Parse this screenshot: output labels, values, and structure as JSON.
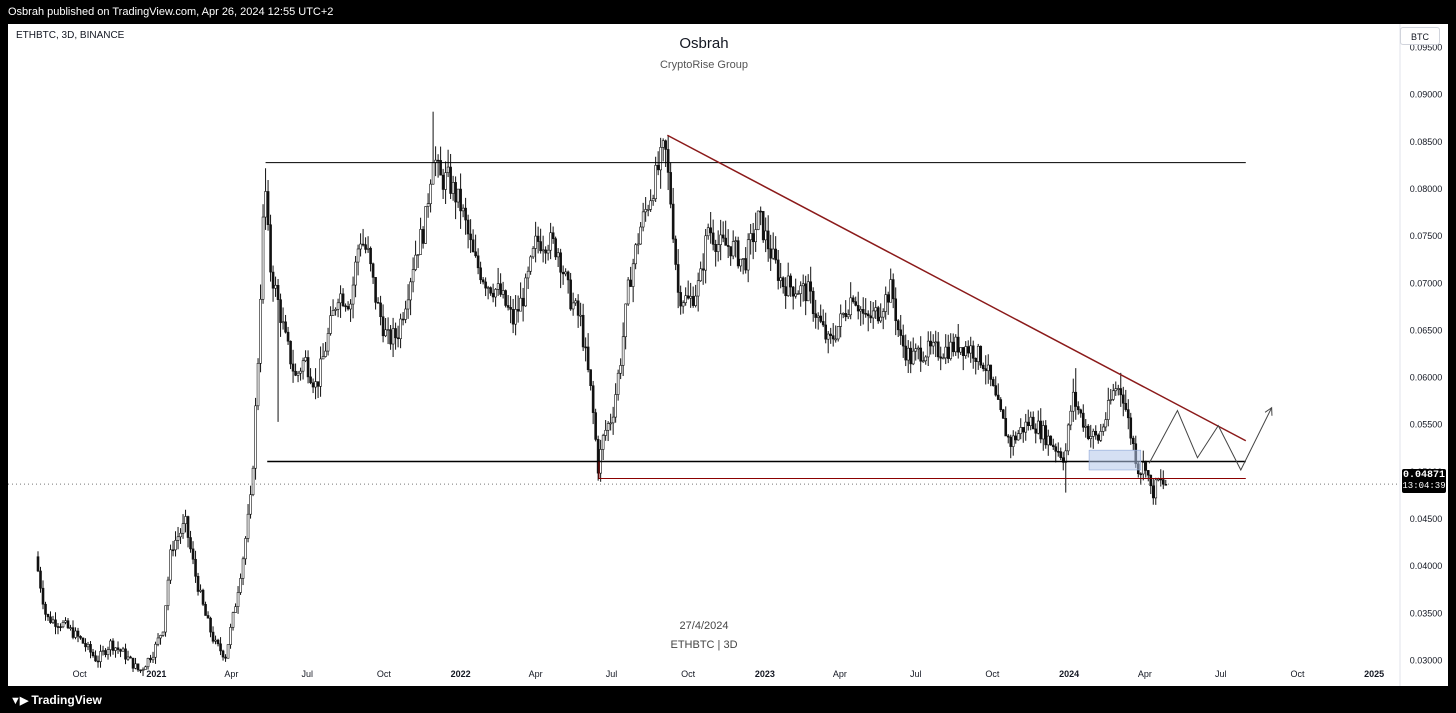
{
  "header": {
    "published": "Osbrah published on TradingView.com, Apr 26, 2024 12:55 UTC+2"
  },
  "footer": {
    "brand": "TradingView",
    "logo_icon": "tradingview-logo-icon"
  },
  "chart_data": {
    "type": "candlestick",
    "symbol_line": "ETHBTC, 3D, BINANCE",
    "title": "Osbrah",
    "subtitle": "CryptoRise Group",
    "watermark_date": "27/4/2024",
    "watermark_symbol": "ETHBTC | 3D",
    "currency": "BTC",
    "last_price": "0.04871",
    "countdown": "13:04:39",
    "ylim": [
      0.0275,
      0.0975
    ],
    "y_ticks": [
      "0.03000",
      "0.03500",
      "0.04000",
      "0.04500",
      "0.05000",
      "0.05500",
      "0.06000",
      "0.06500",
      "0.07000",
      "0.07500",
      "0.08000",
      "0.08500",
      "0.09000",
      "0.09500"
    ],
    "x_ticks": [
      {
        "label": "Oct",
        "date": "2020-10-01",
        "bold": false
      },
      {
        "label": "2021",
        "date": "2021-01-01",
        "bold": true
      },
      {
        "label": "Apr",
        "date": "2021-04-01",
        "bold": false
      },
      {
        "label": "Jul",
        "date": "2021-07-01",
        "bold": false
      },
      {
        "label": "Oct",
        "date": "2021-10-01",
        "bold": false
      },
      {
        "label": "2022",
        "date": "2022-01-01",
        "bold": true
      },
      {
        "label": "Apr",
        "date": "2022-04-01",
        "bold": false
      },
      {
        "label": "Jul",
        "date": "2022-07-01",
        "bold": false
      },
      {
        "label": "Oct",
        "date": "2022-10-01",
        "bold": false
      },
      {
        "label": "2023",
        "date": "2023-01-01",
        "bold": true
      },
      {
        "label": "Apr",
        "date": "2023-04-01",
        "bold": false
      },
      {
        "label": "Jul",
        "date": "2023-07-01",
        "bold": false
      },
      {
        "label": "Oct",
        "date": "2023-10-01",
        "bold": false
      },
      {
        "label": "2024",
        "date": "2024-01-01",
        "bold": true
      },
      {
        "label": "Apr",
        "date": "2024-04-01",
        "bold": false
      },
      {
        "label": "Jul",
        "date": "2024-07-01",
        "bold": false
      },
      {
        "label": "Oct",
        "date": "2024-10-01",
        "bold": false
      },
      {
        "label": "2025",
        "date": "2025-01-01",
        "bold": true
      }
    ],
    "price_path": [
      [
        "2020-08-12",
        0.041
      ],
      [
        "2020-08-25",
        0.0345
      ],
      [
        "2020-09-15",
        0.0338
      ],
      [
        "2020-10-05",
        0.0322
      ],
      [
        "2020-10-25",
        0.03
      ],
      [
        "2020-11-10",
        0.0318
      ],
      [
        "2020-11-25",
        0.0308
      ],
      [
        "2020-12-15",
        0.0288
      ],
      [
        "2021-01-01",
        0.031
      ],
      [
        "2021-01-12",
        0.0335
      ],
      [
        "2021-01-22",
        0.042
      ],
      [
        "2021-02-08",
        0.0445
      ],
      [
        "2021-02-20",
        0.039
      ],
      [
        "2021-03-03",
        0.035
      ],
      [
        "2021-03-15",
        0.0318
      ],
      [
        "2021-03-28",
        0.0305
      ],
      [
        "2021-04-08",
        0.0355
      ],
      [
        "2021-04-18",
        0.041
      ],
      [
        "2021-04-28",
        0.0475
      ],
      [
        "2021-05-06",
        0.062
      ],
      [
        "2021-05-14",
        0.081
      ],
      [
        "2021-05-20",
        0.072
      ],
      [
        "2021-05-30",
        0.068
      ],
      [
        "2021-06-08",
        0.064
      ],
      [
        "2021-06-20",
        0.06
      ],
      [
        "2021-07-01",
        0.062
      ],
      [
        "2021-07-15",
        0.059
      ],
      [
        "2021-07-28",
        0.064
      ],
      [
        "2021-08-10",
        0.069
      ],
      [
        "2021-08-25",
        0.068
      ],
      [
        "2021-09-05",
        0.075
      ],
      [
        "2021-09-15",
        0.073
      ],
      [
        "2021-09-25",
        0.068
      ],
      [
        "2021-10-08",
        0.064
      ],
      [
        "2021-10-20",
        0.0645
      ],
      [
        "2021-11-01",
        0.069
      ],
      [
        "2021-11-10",
        0.073
      ],
      [
        "2021-11-22",
        0.076
      ],
      [
        "2021-12-02",
        0.084
      ],
      [
        "2021-12-10",
        0.081
      ],
      [
        "2021-12-20",
        0.081
      ],
      [
        "2022-01-05",
        0.078
      ],
      [
        "2022-01-20",
        0.0725
      ],
      [
        "2022-02-05",
        0.07
      ],
      [
        "2022-02-20",
        0.069
      ],
      [
        "2022-03-08",
        0.066
      ],
      [
        "2022-03-22",
        0.069
      ],
      [
        "2022-04-05",
        0.0745
      ],
      [
        "2022-04-20",
        0.0745
      ],
      [
        "2022-05-01",
        0.0735
      ],
      [
        "2022-05-15",
        0.0685
      ],
      [
        "2022-05-28",
        0.066
      ],
      [
        "2022-06-10",
        0.058
      ],
      [
        "2022-06-18",
        0.0505
      ],
      [
        "2022-06-25",
        0.054
      ],
      [
        "2022-07-05",
        0.056
      ],
      [
        "2022-07-15",
        0.062
      ],
      [
        "2022-07-25",
        0.07
      ],
      [
        "2022-08-08",
        0.076
      ],
      [
        "2022-08-22",
        0.08
      ],
      [
        "2022-09-06",
        0.0845
      ],
      [
        "2022-09-14",
        0.078
      ],
      [
        "2022-09-22",
        0.069
      ],
      [
        "2022-10-05",
        0.068
      ],
      [
        "2022-10-18",
        0.07
      ],
      [
        "2022-10-28",
        0.076
      ],
      [
        "2022-11-10",
        0.074
      ],
      [
        "2022-11-25",
        0.074
      ],
      [
        "2022-12-10",
        0.072
      ],
      [
        "2022-12-28",
        0.077
      ],
      [
        "2023-01-10",
        0.0735
      ],
      [
        "2023-01-25",
        0.07
      ],
      [
        "2023-02-10",
        0.0695
      ],
      [
        "2023-02-25",
        0.069
      ],
      [
        "2023-03-10",
        0.066
      ],
      [
        "2023-03-22",
        0.0635
      ],
      [
        "2023-04-05",
        0.066
      ],
      [
        "2023-04-20",
        0.069
      ],
      [
        "2023-05-05",
        0.066
      ],
      [
        "2023-05-20",
        0.067
      ],
      [
        "2023-06-05",
        0.0695
      ],
      [
        "2023-06-15",
        0.064
      ],
      [
        "2023-06-28",
        0.062
      ],
      [
        "2023-07-10",
        0.0628
      ],
      [
        "2023-07-25",
        0.0628
      ],
      [
        "2023-08-10",
        0.063
      ],
      [
        "2023-08-25",
        0.0635
      ],
      [
        "2023-09-10",
        0.063
      ],
      [
        "2023-09-25",
        0.0615
      ],
      [
        "2023-10-10",
        0.057
      ],
      [
        "2023-10-25",
        0.053
      ],
      [
        "2023-11-08",
        0.0545
      ],
      [
        "2023-11-20",
        0.0555
      ],
      [
        "2023-12-05",
        0.054
      ],
      [
        "2023-12-20",
        0.0525
      ],
      [
        "2023-12-30",
        0.0515
      ],
      [
        "2024-01-08",
        0.058
      ],
      [
        "2024-01-18",
        0.056
      ],
      [
        "2024-01-28",
        0.054
      ],
      [
        "2024-02-08",
        0.0535
      ],
      [
        "2024-02-18",
        0.056
      ],
      [
        "2024-02-28",
        0.059
      ],
      [
        "2024-03-08",
        0.0585
      ],
      [
        "2024-03-18",
        0.054
      ],
      [
        "2024-03-28",
        0.05
      ],
      [
        "2024-04-05",
        0.051
      ],
      [
        "2024-04-12",
        0.0475
      ],
      [
        "2024-04-20",
        0.049
      ],
      [
        "2024-04-26",
        0.0487
      ]
    ],
    "spikes": [
      {
        "date": "2021-05-12",
        "high": 0.0822
      },
      {
        "date": "2021-11-30",
        "high": 0.0882
      },
      {
        "date": "2022-09-06",
        "high": 0.0855
      },
      {
        "date": "2022-06-18",
        "low": 0.0495
      },
      {
        "date": "2024-01-10",
        "high": 0.061
      },
      {
        "date": "2024-03-02",
        "high": 0.0605
      },
      {
        "date": "2023-12-28",
        "low": 0.0478
      },
      {
        "date": "2024-04-15",
        "low": 0.0465
      },
      {
        "date": "2021-05-27",
        "low": 0.0553
      }
    ],
    "drawings": {
      "resistance": {
        "price": 0.0828,
        "from": "2021-05-12",
        "to": "2024-07-31",
        "color": "#000000"
      },
      "support": {
        "price": 0.0511,
        "from": "2021-05-14",
        "to": "2024-07-31",
        "color": "#000000"
      },
      "lower_box": {
        "price": 0.0493,
        "top": 0.0511,
        "from": "2022-06-16",
        "to": "2024-07-31",
        "color": "#8b0000"
      },
      "trendline": {
        "from": [
          "2022-09-06",
          0.0857
        ],
        "to": [
          "2024-07-31",
          0.0533
        ],
        "color": "#8b1a1a"
      },
      "order_block": {
        "from": "2024-01-25",
        "to": "2024-03-27",
        "low": 0.0502,
        "high": 0.0523,
        "color": "#b3c7ea"
      },
      "projection": [
        [
          "2024-04-06",
          0.0509
        ],
        [
          "2024-05-10",
          0.0565
        ],
        [
          "2024-06-03",
          0.0515
        ],
        [
          "2024-06-28",
          0.0549
        ],
        [
          "2024-07-25",
          0.0502
        ],
        [
          "2024-08-31",
          0.0568
        ]
      ],
      "last_price_line": {
        "price": 0.0487
      }
    }
  }
}
